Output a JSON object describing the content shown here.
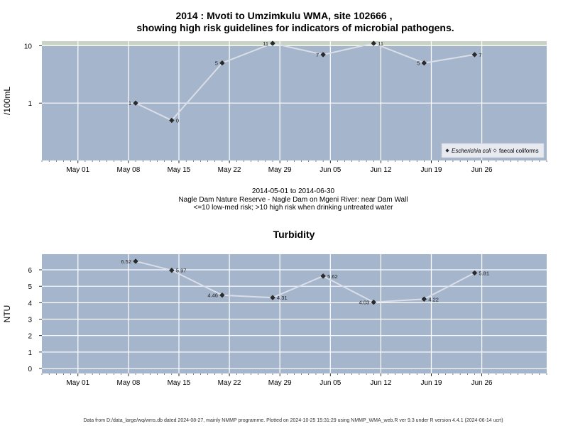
{
  "header": {
    "title_line1": "2014 : Mvoti to Umzimkulu WMA, site 102666 ,",
    "title_line2": "showing high risk guidelines for indicators of microbial pathogens."
  },
  "caption": {
    "date_range": "2014-05-01 to 2014-06-30",
    "site": "Nagle Dam Nature Reserve - Nagle Dam on Mgeni River: near Dam Wall",
    "risk_note": "<=10 low-med risk; >10 high risk when drinking untreated water"
  },
  "footer": {
    "text": "Data from D:/data_large/wq/wms.db dated 2024-08-27, mainly NMMP programme. Plotted on 2024-10-25 15:31:29 using NMMP_WMA_web.R ver 9.3 under R version 4.4.1 (2024-06-14 ucrt)"
  },
  "colors": {
    "panel_bg": "#a5b5cc",
    "high_risk_band": "#c8d3c5",
    "grid": "#ffffff",
    "series_line": "#d9dee8",
    "point": "#2b2b2b"
  },
  "chart_data": [
    {
      "type": "line",
      "title": "",
      "ylabel": "/100mL",
      "yscale": "log",
      "ylim": [
        0.1,
        12
      ],
      "high_risk_threshold": 10,
      "yticks": [
        1,
        10
      ],
      "ytick_labels": [
        "1",
        "10"
      ],
      "xlim": [
        "2014-04-26",
        "2014-07-05"
      ],
      "xticks": [
        "2014-05-01",
        "2014-05-08",
        "2014-05-15",
        "2014-05-22",
        "2014-05-29",
        "2014-06-05",
        "2014-06-12",
        "2014-06-19",
        "2014-06-26"
      ],
      "xtick_labels": [
        "May 01",
        "May 08",
        "May 15",
        "May 22",
        "May 29",
        "Jun 05",
        "Jun 12",
        "Jun 19",
        "Jun 26"
      ],
      "grid": true,
      "legend_position": "bottom-right",
      "legend": [
        {
          "label": "Escherichia coli",
          "marker": "filled-diamond",
          "italic": true
        },
        {
          "label": "faecal coliforms",
          "marker": "open-diamond",
          "italic": false
        }
      ],
      "series": [
        {
          "name": "Escherichia coli",
          "x": [
            "2014-05-09",
            "2014-05-14",
            "2014-05-21",
            "2014-05-28",
            "2014-06-04",
            "2014-06-11",
            "2014-06-18",
            "2014-06-25"
          ],
          "y": [
            1,
            0.5,
            5,
            11,
            7,
            11,
            5,
            7
          ],
          "labels": [
            "1",
            "0",
            "5",
            "11",
            "7",
            "11",
            "5",
            "7"
          ],
          "label_side": [
            "left",
            "right",
            "left",
            "left",
            "left",
            "right",
            "left",
            "right"
          ]
        }
      ]
    },
    {
      "type": "line",
      "title": "Turbidity",
      "ylabel": "NTU",
      "ylim": [
        -0.3,
        6.95
      ],
      "yticks": [
        0,
        1,
        2,
        3,
        4,
        5,
        6
      ],
      "ytick_labels": [
        "0",
        "1",
        "2",
        "3",
        "4",
        "5",
        "6"
      ],
      "xlim": [
        "2014-04-26",
        "2014-07-05"
      ],
      "xticks": [
        "2014-05-01",
        "2014-05-08",
        "2014-05-15",
        "2014-05-22",
        "2014-05-29",
        "2014-06-05",
        "2014-06-12",
        "2014-06-19",
        "2014-06-26"
      ],
      "xtick_labels": [
        "May 01",
        "May 08",
        "May 15",
        "May 22",
        "May 29",
        "Jun 05",
        "Jun 12",
        "Jun 19",
        "Jun 26"
      ],
      "grid": true,
      "series": [
        {
          "name": "Turbidity",
          "x": [
            "2014-05-09",
            "2014-05-14",
            "2014-05-21",
            "2014-05-28",
            "2014-06-04",
            "2014-06-11",
            "2014-06-18",
            "2014-06-25"
          ],
          "y": [
            6.52,
            5.97,
            4.46,
            4.31,
            5.62,
            4.03,
            4.22,
            5.81
          ],
          "labels": [
            "6.52",
            "5.97",
            "4.46",
            "4.31",
            "5.62",
            "4.03",
            "4.22",
            "5.81"
          ],
          "label_side": [
            "left",
            "right",
            "left",
            "right",
            "right",
            "left",
            "right",
            "right"
          ]
        }
      ]
    }
  ]
}
